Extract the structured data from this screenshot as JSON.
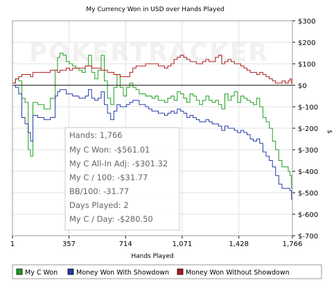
{
  "chart_data": {
    "type": "line",
    "title": "My Currency Won in USD over Hands Played",
    "xlabel": "Hands Played",
    "ylabel": "$",
    "watermark": "POKERTRACKER",
    "xlim": [
      1,
      1766
    ],
    "ylim": [
      -700,
      300
    ],
    "x_ticks": [
      1,
      357,
      714,
      1071,
      1428,
      1766
    ],
    "x_tick_labels": [
      "1",
      "357",
      "714",
      "1,071",
      "1,428",
      "1,766"
    ],
    "y_ticks": [
      300,
      200,
      100,
      0,
      -100,
      -200,
      -300,
      -400,
      -500,
      -600,
      -700
    ],
    "y_tick_labels": [
      "$300",
      "$200",
      "$100",
      "$0",
      "$-100",
      "$-200",
      "$-300",
      "$-400",
      "$-500",
      "$-600",
      "$-700"
    ],
    "grid": true,
    "legend_position": "bottom",
    "series": [
      {
        "name": "My C Won",
        "color": "#1ea01e",
        "x": [
          1,
          20,
          40,
          60,
          80,
          100,
          115,
          130,
          160,
          200,
          240,
          270,
          285,
          300,
          320,
          340,
          360,
          380,
          400,
          420,
          440,
          460,
          480,
          500,
          520,
          540,
          560,
          580,
          600,
          620,
          640,
          660,
          680,
          700,
          720,
          740,
          760,
          780,
          800,
          820,
          840,
          860,
          880,
          900,
          920,
          940,
          960,
          980,
          1000,
          1020,
          1040,
          1060,
          1080,
          1100,
          1120,
          1140,
          1160,
          1180,
          1200,
          1220,
          1240,
          1260,
          1280,
          1300,
          1320,
          1340,
          1360,
          1380,
          1400,
          1420,
          1440,
          1460,
          1480,
          1500,
          1520,
          1540,
          1560,
          1580,
          1600,
          1620,
          1640,
          1660,
          1680,
          1700,
          1720,
          1740,
          1750,
          1760,
          1766
        ],
        "y": [
          10,
          30,
          20,
          -60,
          -80,
          -300,
          -330,
          -80,
          -90,
          -110,
          -60,
          70,
          130,
          150,
          140,
          110,
          100,
          90,
          80,
          70,
          60,
          90,
          140,
          60,
          30,
          70,
          140,
          20,
          -60,
          -90,
          -10,
          50,
          -10,
          -50,
          -10,
          10,
          -10,
          -20,
          -40,
          -40,
          -50,
          -50,
          -60,
          -50,
          -70,
          -70,
          -80,
          -60,
          -50,
          -70,
          -30,
          -40,
          -60,
          -80,
          -40,
          -50,
          -70,
          -90,
          -70,
          -50,
          -70,
          -80,
          -70,
          -90,
          -110,
          -40,
          -70,
          -50,
          -30,
          -80,
          -50,
          -60,
          -70,
          -80,
          -90,
          -60,
          -100,
          -150,
          -170,
          -200,
          -260,
          -300,
          -350,
          -380,
          -380,
          -400,
          -420,
          -480,
          -561.01
        ]
      },
      {
        "name": "Money Won With Showdown",
        "color": "#2638a8",
        "x": [
          1,
          20,
          40,
          60,
          80,
          100,
          115,
          130,
          160,
          200,
          240,
          270,
          285,
          300,
          320,
          340,
          360,
          380,
          400,
          420,
          440,
          460,
          480,
          500,
          520,
          540,
          560,
          580,
          600,
          620,
          640,
          660,
          680,
          700,
          720,
          740,
          760,
          780,
          800,
          820,
          840,
          860,
          880,
          900,
          920,
          940,
          960,
          980,
          1000,
          1020,
          1040,
          1060,
          1080,
          1100,
          1120,
          1140,
          1160,
          1180,
          1200,
          1220,
          1240,
          1260,
          1280,
          1300,
          1320,
          1340,
          1360,
          1380,
          1400,
          1420,
          1440,
          1460,
          1480,
          1500,
          1520,
          1540,
          1560,
          1580,
          1600,
          1620,
          1640,
          1660,
          1680,
          1700,
          1720,
          1740,
          1750,
          1760,
          1766
        ],
        "y": [
          0,
          -10,
          -40,
          -150,
          -180,
          -220,
          -260,
          -140,
          -150,
          -160,
          -150,
          -50,
          -30,
          -20,
          -20,
          -40,
          -40,
          -50,
          -50,
          -60,
          -60,
          -50,
          -20,
          -60,
          -70,
          -60,
          -30,
          -90,
          -130,
          -160,
          -120,
          -90,
          -100,
          -100,
          -90,
          -80,
          -70,
          -70,
          -90,
          -90,
          -100,
          -110,
          -120,
          -120,
          -130,
          -130,
          -140,
          -130,
          -120,
          -130,
          -110,
          -120,
          -130,
          -150,
          -140,
          -150,
          -160,
          -170,
          -170,
          -160,
          -170,
          -180,
          -180,
          -190,
          -210,
          -190,
          -200,
          -200,
          -210,
          -220,
          -210,
          -220,
          -230,
          -250,
          -260,
          -250,
          -270,
          -310,
          -330,
          -350,
          -380,
          -420,
          -460,
          -480,
          -480,
          -480,
          -490,
          -530,
          -580
        ]
      },
      {
        "name": "Money Won Without Showdown",
        "color": "#b01818",
        "x": [
          1,
          20,
          40,
          60,
          80,
          100,
          115,
          130,
          160,
          200,
          240,
          270,
          285,
          300,
          320,
          340,
          360,
          380,
          400,
          420,
          440,
          460,
          480,
          500,
          520,
          540,
          560,
          580,
          600,
          620,
          640,
          660,
          680,
          700,
          720,
          740,
          760,
          780,
          800,
          820,
          840,
          860,
          880,
          900,
          920,
          940,
          960,
          980,
          1000,
          1020,
          1040,
          1060,
          1080,
          1100,
          1120,
          1140,
          1160,
          1180,
          1200,
          1220,
          1240,
          1260,
          1280,
          1300,
          1320,
          1340,
          1360,
          1380,
          1400,
          1420,
          1440,
          1460,
          1480,
          1500,
          1520,
          1540,
          1560,
          1580,
          1600,
          1620,
          1640,
          1660,
          1680,
          1700,
          1720,
          1740,
          1750,
          1760,
          1766
        ],
        "y": [
          10,
          30,
          40,
          50,
          50,
          50,
          40,
          60,
          60,
          60,
          70,
          70,
          60,
          70,
          70,
          80,
          70,
          80,
          80,
          80,
          80,
          90,
          90,
          80,
          80,
          80,
          70,
          70,
          60,
          60,
          50,
          50,
          40,
          40,
          40,
          60,
          80,
          90,
          90,
          90,
          100,
          100,
          100,
          100,
          90,
          90,
          80,
          90,
          100,
          120,
          130,
          140,
          130,
          120,
          110,
          110,
          100,
          100,
          110,
          120,
          110,
          110,
          130,
          140,
          100,
          110,
          120,
          110,
          100,
          100,
          90,
          80,
          70,
          60,
          60,
          50,
          60,
          50,
          40,
          30,
          20,
          10,
          10,
          20,
          10,
          20,
          30,
          10,
          10
        ]
      }
    ],
    "stats_box": [
      "Hands: 1,766",
      "My C Won: -$561.01",
      "My C All-In Adj: -$301.32",
      "My C / 100: -$31.77",
      "BB/100: -31.77",
      "Days Played: 2",
      "My C / Day: -$280.50"
    ]
  }
}
